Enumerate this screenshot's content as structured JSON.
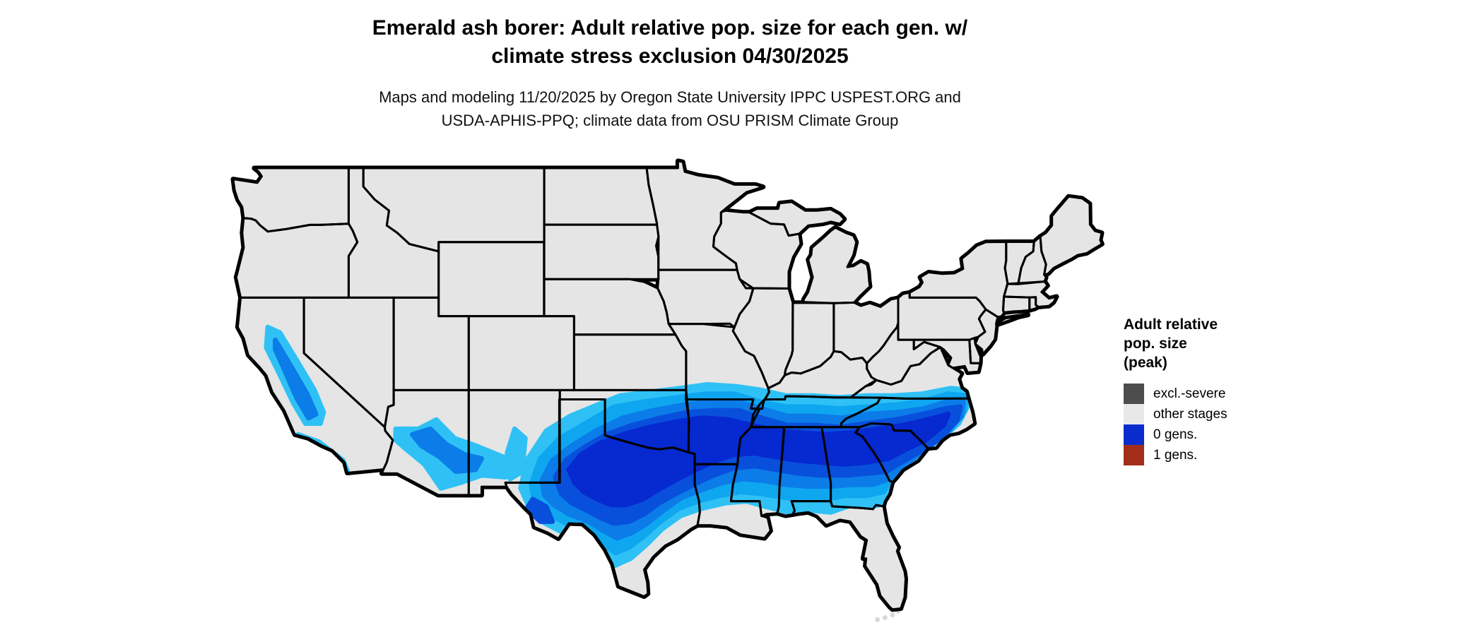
{
  "header": {
    "title_line1": "Emerald ash borer: Adult relative pop. size for each gen. w/",
    "title_line2": "climate stress exclusion 04/30/2025",
    "subtitle_line1": "Maps and modeling 11/20/2025 by Oregon State University IPPC USPEST.ORG and",
    "subtitle_line2": "USDA-APHIS-PPQ; climate data from OSU PRISM Climate Group"
  },
  "legend": {
    "title_line1": "Adult relative",
    "title_line2": "pop. size",
    "title_line3": "(peak)",
    "items": [
      {
        "label": "excl.-severe",
        "color": "#4d4d4d"
      },
      {
        "label": "other stages",
        "color": "#e8e8e8"
      },
      {
        "label": "0 gens.",
        "color": "#0a2bce"
      },
      {
        "label": "1 gens.",
        "color": "#a22e1a"
      }
    ]
  },
  "map": {
    "background": "#ffffff",
    "state_fill": "#e5e5e5",
    "border_color": "#000000",
    "population_gradient": [
      "#2fc1f5",
      "#0fa6f0",
      "#0b7ce8",
      "#0850dc",
      "#0629d0"
    ],
    "keys_fill": "#d9d9d9"
  }
}
